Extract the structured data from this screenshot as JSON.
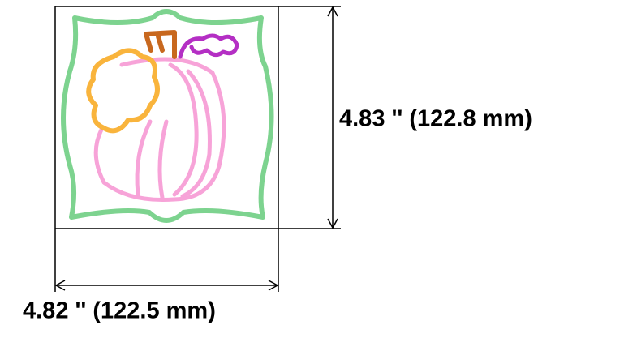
{
  "dimensions": {
    "height_label": "4.83 '' (122.8 mm)",
    "width_label": "4.82 '' (122.5 mm)"
  }
}
